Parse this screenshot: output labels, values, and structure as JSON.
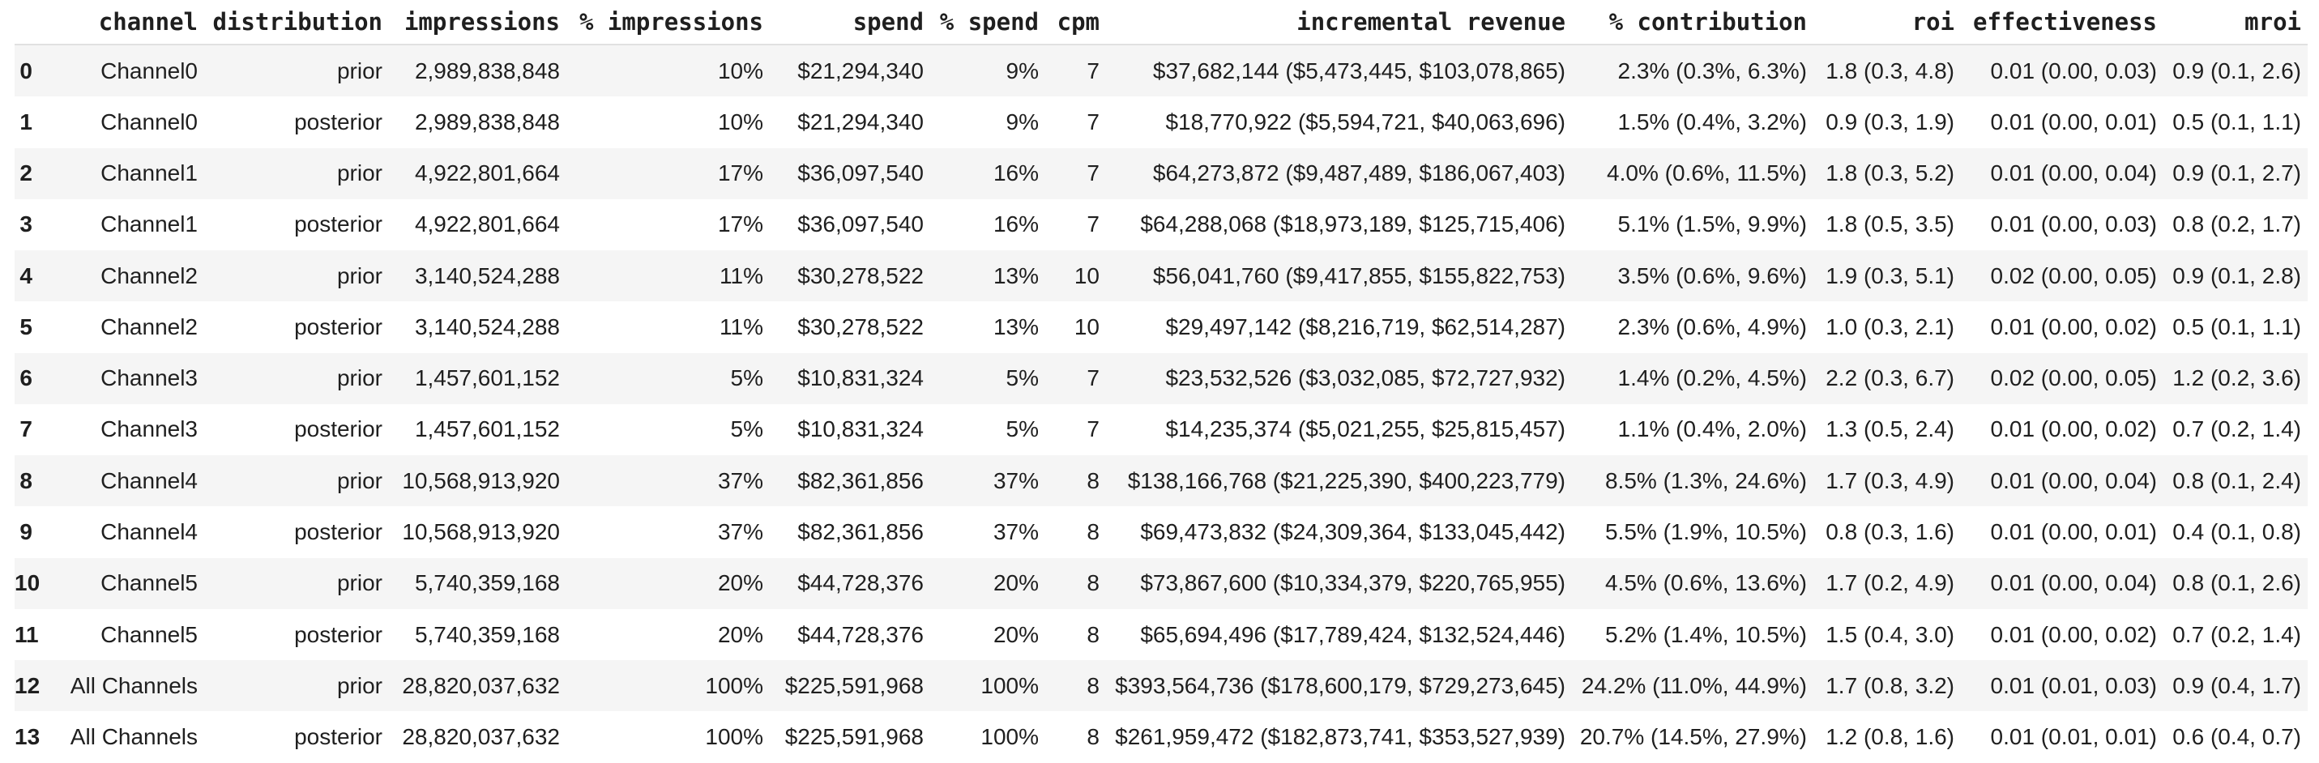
{
  "colors": {
    "background": "#ffffff",
    "stripe": "#f5f5f5",
    "header_border": "#e1e1e1",
    "text": "#1f1f1f"
  },
  "table": {
    "index_header": "",
    "columns": [
      "channel",
      "distribution",
      "impressions",
      "% impressions",
      "spend",
      "% spend",
      "cpm",
      "incremental revenue",
      "% contribution",
      "roi",
      "effectiveness",
      "mroi"
    ],
    "rows": [
      {
        "index": "0",
        "cells": [
          "Channel0",
          "prior",
          "2,989,838,848",
          "10%",
          "$21,294,340",
          "9%",
          "7",
          "$37,682,144 ($5,473,445, $103,078,865)",
          "2.3% (0.3%, 6.3%)",
          "1.8 (0.3, 4.8)",
          "0.01 (0.00, 0.03)",
          "0.9 (0.1, 2.6)"
        ]
      },
      {
        "index": "1",
        "cells": [
          "Channel0",
          "posterior",
          "2,989,838,848",
          "10%",
          "$21,294,340",
          "9%",
          "7",
          "$18,770,922 ($5,594,721, $40,063,696)",
          "1.5% (0.4%, 3.2%)",
          "0.9 (0.3, 1.9)",
          "0.01 (0.00, 0.01)",
          "0.5 (0.1, 1.1)"
        ]
      },
      {
        "index": "2",
        "cells": [
          "Channel1",
          "prior",
          "4,922,801,664",
          "17%",
          "$36,097,540",
          "16%",
          "7",
          "$64,273,872 ($9,487,489, $186,067,403)",
          "4.0% (0.6%, 11.5%)",
          "1.8 (0.3, 5.2)",
          "0.01 (0.00, 0.04)",
          "0.9 (0.1, 2.7)"
        ]
      },
      {
        "index": "3",
        "cells": [
          "Channel1",
          "posterior",
          "4,922,801,664",
          "17%",
          "$36,097,540",
          "16%",
          "7",
          "$64,288,068 ($18,973,189, $125,715,406)",
          "5.1% (1.5%, 9.9%)",
          "1.8 (0.5, 3.5)",
          "0.01 (0.00, 0.03)",
          "0.8 (0.2, 1.7)"
        ]
      },
      {
        "index": "4",
        "cells": [
          "Channel2",
          "prior",
          "3,140,524,288",
          "11%",
          "$30,278,522",
          "13%",
          "10",
          "$56,041,760 ($9,417,855, $155,822,753)",
          "3.5% (0.6%, 9.6%)",
          "1.9 (0.3, 5.1)",
          "0.02 (0.00, 0.05)",
          "0.9 (0.1, 2.8)"
        ]
      },
      {
        "index": "5",
        "cells": [
          "Channel2",
          "posterior",
          "3,140,524,288",
          "11%",
          "$30,278,522",
          "13%",
          "10",
          "$29,497,142 ($8,216,719, $62,514,287)",
          "2.3% (0.6%, 4.9%)",
          "1.0 (0.3, 2.1)",
          "0.01 (0.00, 0.02)",
          "0.5 (0.1, 1.1)"
        ]
      },
      {
        "index": "6",
        "cells": [
          "Channel3",
          "prior",
          "1,457,601,152",
          "5%",
          "$10,831,324",
          "5%",
          "7",
          "$23,532,526 ($3,032,085, $72,727,932)",
          "1.4% (0.2%, 4.5%)",
          "2.2 (0.3, 6.7)",
          "0.02 (0.00, 0.05)",
          "1.2 (0.2, 3.6)"
        ]
      },
      {
        "index": "7",
        "cells": [
          "Channel3",
          "posterior",
          "1,457,601,152",
          "5%",
          "$10,831,324",
          "5%",
          "7",
          "$14,235,374 ($5,021,255, $25,815,457)",
          "1.1% (0.4%, 2.0%)",
          "1.3 (0.5, 2.4)",
          "0.01 (0.00, 0.02)",
          "0.7 (0.2, 1.4)"
        ]
      },
      {
        "index": "8",
        "cells": [
          "Channel4",
          "prior",
          "10,568,913,920",
          "37%",
          "$82,361,856",
          "37%",
          "8",
          "$138,166,768 ($21,225,390, $400,223,779)",
          "8.5% (1.3%, 24.6%)",
          "1.7 (0.3, 4.9)",
          "0.01 (0.00, 0.04)",
          "0.8 (0.1, 2.4)"
        ]
      },
      {
        "index": "9",
        "cells": [
          "Channel4",
          "posterior",
          "10,568,913,920",
          "37%",
          "$82,361,856",
          "37%",
          "8",
          "$69,473,832 ($24,309,364, $133,045,442)",
          "5.5% (1.9%, 10.5%)",
          "0.8 (0.3, 1.6)",
          "0.01 (0.00, 0.01)",
          "0.4 (0.1, 0.8)"
        ]
      },
      {
        "index": "10",
        "cells": [
          "Channel5",
          "prior",
          "5,740,359,168",
          "20%",
          "$44,728,376",
          "20%",
          "8",
          "$73,867,600 ($10,334,379, $220,765,955)",
          "4.5% (0.6%, 13.6%)",
          "1.7 (0.2, 4.9)",
          "0.01 (0.00, 0.04)",
          "0.8 (0.1, 2.6)"
        ]
      },
      {
        "index": "11",
        "cells": [
          "Channel5",
          "posterior",
          "5,740,359,168",
          "20%",
          "$44,728,376",
          "20%",
          "8",
          "$65,694,496 ($17,789,424, $132,524,446)",
          "5.2% (1.4%, 10.5%)",
          "1.5 (0.4, 3.0)",
          "0.01 (0.00, 0.02)",
          "0.7 (0.2, 1.4)"
        ]
      },
      {
        "index": "12",
        "cells": [
          "All Channels",
          "prior",
          "28,820,037,632",
          "100%",
          "$225,591,968",
          "100%",
          "8",
          "$393,564,736 ($178,600,179, $729,273,645)",
          "24.2% (11.0%, 44.9%)",
          "1.7 (0.8, 3.2)",
          "0.01 (0.01, 0.03)",
          "0.9 (0.4, 1.7)"
        ]
      },
      {
        "index": "13",
        "cells": [
          "All Channels",
          "posterior",
          "28,820,037,632",
          "100%",
          "$225,591,968",
          "100%",
          "8",
          "$261,959,472 ($182,873,741, $353,527,939)",
          "20.7% (14.5%, 27.9%)",
          "1.2 (0.8, 1.6)",
          "0.01 (0.01, 0.01)",
          "0.6 (0.4, 0.7)"
        ]
      }
    ]
  }
}
